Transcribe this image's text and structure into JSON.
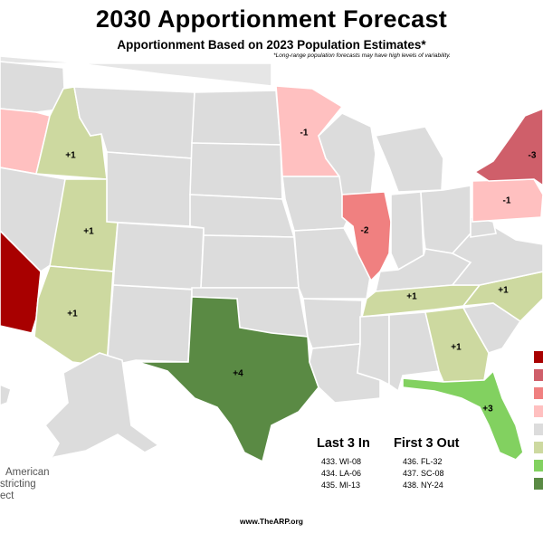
{
  "title": "2030 Apportionment Forecast",
  "subtitle": "Apportionment Based on 2023 Population Estimates*",
  "note": "*Long-range population forecasts may have high levels of variability.",
  "colors": {
    "minus4": "#a80000",
    "minus3": "#cf5f6a",
    "minus2": "#f08080",
    "minus1": "#ffc0c0",
    "zero": "#dcdcdc",
    "plus1": "#cdd9a0",
    "plus3": "#82d160",
    "plus4": "#5a8a44"
  },
  "states": [
    {
      "name": "California",
      "change": null
    },
    {
      "name": "Oregon",
      "change": null
    },
    {
      "name": "Idaho",
      "change": "+1"
    },
    {
      "name": "Utah",
      "change": "+1"
    },
    {
      "name": "Arizona",
      "change": "+1"
    },
    {
      "name": "Texas",
      "change": "+4"
    },
    {
      "name": "Minnesota",
      "change": "-1"
    },
    {
      "name": "Illinois",
      "change": "-2"
    },
    {
      "name": "New York",
      "change": "-3"
    },
    {
      "name": "Pennsylvania",
      "change": "-1"
    },
    {
      "name": "Tennessee",
      "change": "+1"
    },
    {
      "name": "North Carolina",
      "change": "+1"
    },
    {
      "name": "Georgia",
      "change": "+1"
    },
    {
      "name": "Florida",
      "change": "+3"
    }
  ],
  "last_in": {
    "title": "Last 3 In",
    "rows": [
      "433. WI-08",
      "434. LA-06",
      "435. MI-13"
    ]
  },
  "first_out": {
    "title": "First 3 Out",
    "rows": [
      "436. FL-32",
      "437. SC-08",
      "438. NY-24"
    ]
  },
  "org_lines": [
    "American",
    "stricting",
    "ect"
  ],
  "website": "www.TheARP.org"
}
